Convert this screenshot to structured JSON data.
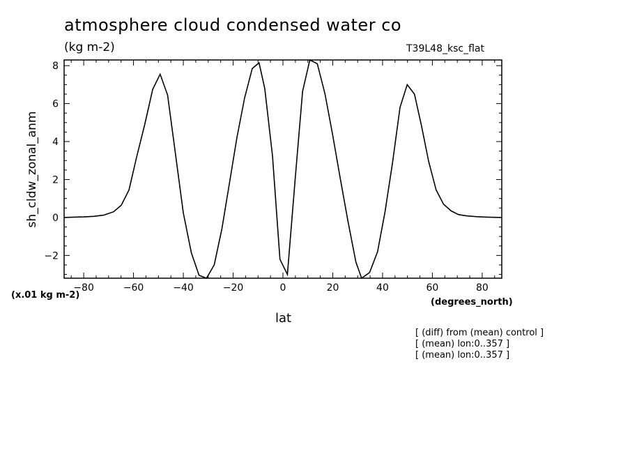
{
  "title": "atmosphere cloud condensed water co",
  "subtitle": "(kg m-2)",
  "run_label": "T39L48_ksc_flat",
  "notes": [
    "[ (diff) from (mean) control ]",
    "[ (mean) lon:0..357 ]",
    "[ (mean) lon:0..357 ]"
  ],
  "chart_data": {
    "type": "line",
    "title": "atmosphere cloud condensed water co",
    "subtitle": "(kg m-2)",
    "xlabel": "lat",
    "ylabel": "sh_cldw_zonal_anm",
    "x_unit": "(degrees_north)",
    "y_unit": "(x.01 kg m-2)",
    "xlim": [
      -87.86,
      87.86
    ],
    "ylim": [
      -3.2,
      8.3
    ],
    "x_ticks": [
      -80,
      -60,
      -40,
      -20,
      0,
      20,
      40,
      60,
      80
    ],
    "y_ticks": [
      -2,
      0,
      2,
      4,
      6,
      8
    ],
    "x_minor_step": 5,
    "y_minor_step": 0.5,
    "grid": false,
    "series": [
      {
        "x": [
          -87.86,
          -84.0,
          -80.0,
          -76.0,
          -72.0,
          -68.0,
          -64.9,
          -61.8,
          -58.9,
          -55.5,
          -52.3,
          -49.3,
          -46.3,
          -43.2,
          -40.0,
          -36.8,
          -33.7,
          -30.7,
          -27.6,
          -24.5,
          -21.5,
          -18.5,
          -15.4,
          -12.3,
          -9.6,
          -7.3,
          -4.2,
          -1.2,
          1.8,
          4.9,
          7.9,
          10.8,
          13.8,
          16.9,
          19.9,
          22.9,
          26.1,
          29.3,
          31.6,
          34.8,
          38.0,
          41.0,
          44.0,
          47.0,
          49.9,
          52.8,
          55.6,
          58.5,
          61.5,
          64.5,
          67.5,
          70.5,
          74.0,
          78.0,
          82.0,
          87.86
        ],
        "y": [
          0.0,
          0.02,
          0.03,
          0.06,
          0.12,
          0.3,
          0.65,
          1.45,
          3.1,
          4.9,
          6.75,
          7.55,
          6.45,
          3.4,
          0.25,
          -1.85,
          -3.05,
          -3.2,
          -2.5,
          -0.6,
          1.8,
          4.2,
          6.3,
          7.85,
          8.15,
          6.8,
          3.25,
          -2.2,
          -3.0,
          2.0,
          6.65,
          8.3,
          8.1,
          6.5,
          4.4,
          2.15,
          -0.2,
          -2.35,
          -3.2,
          -2.9,
          -1.8,
          0.3,
          2.9,
          5.8,
          7.0,
          6.5,
          4.85,
          2.95,
          1.45,
          0.7,
          0.35,
          0.15,
          0.08,
          0.04,
          0.02,
          0.0
        ]
      }
    ]
  }
}
